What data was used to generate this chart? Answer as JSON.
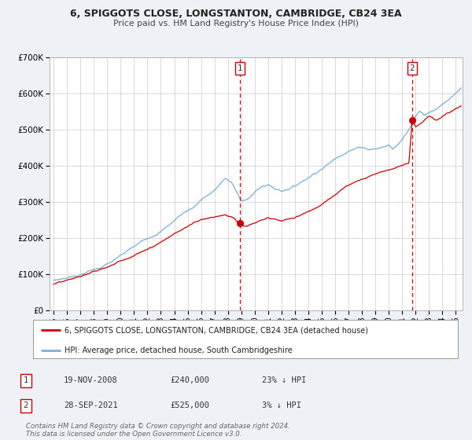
{
  "title": "6, SPIGGOTS CLOSE, LONGSTANTON, CAMBRIDGE, CB24 3EA",
  "subtitle": "Price paid vs. HM Land Registry's House Price Index (HPI)",
  "background_color": "#eef2f7",
  "plot_bg_color": "#ffffff",
  "ylim": [
    0,
    700000
  ],
  "xlim_start": 1994.7,
  "xlim_end": 2025.5,
  "yticks": [
    0,
    100000,
    200000,
    300000,
    400000,
    500000,
    600000,
    700000
  ],
  "ytick_labels": [
    "£0",
    "£100K",
    "£200K",
    "£300K",
    "£400K",
    "£500K",
    "£600K",
    "£700K"
  ],
  "xticks": [
    1995,
    1996,
    1997,
    1998,
    1999,
    2000,
    2001,
    2002,
    2003,
    2004,
    2005,
    2006,
    2007,
    2008,
    2009,
    2010,
    2011,
    2012,
    2013,
    2014,
    2015,
    2016,
    2017,
    2018,
    2019,
    2020,
    2021,
    2022,
    2023,
    2024,
    2025
  ],
  "sale1_date": 2008.89,
  "sale1_price": 240000,
  "sale1_label": "19-NOV-2008",
  "sale1_price_label": "£240,000",
  "sale1_pct": "23% ↓ HPI",
  "sale2_date": 2021.74,
  "sale2_price": 525000,
  "sale2_label": "28-SEP-2021",
  "sale2_price_label": "£525,000",
  "sale2_pct": "3% ↓ HPI",
  "red_line_color": "#cc0000",
  "blue_line_color": "#7aadda",
  "vline_color": "#cc0000",
  "marker_color": "#cc0000",
  "legend1_label": "6, SPIGGOTS CLOSE, LONGSTANTON, CAMBRIDGE, CB24 3EA (detached house)",
  "legend2_label": "HPI: Average price, detached house, South Cambridgeshire",
  "footer": "Contains HM Land Registry data © Crown copyright and database right 2024.\nThis data is licensed under the Open Government Licence v3.0.",
  "hpi_x": [
    1995.0,
    1996.0,
    1997.0,
    1997.5,
    1998.5,
    1999.5,
    2000.5,
    2001.5,
    2002.5,
    2003.5,
    2004.5,
    2005.5,
    2006.0,
    2007.0,
    2007.8,
    2008.3,
    2009.0,
    2009.5,
    2010.0,
    2010.5,
    2011.0,
    2011.5,
    2012.0,
    2012.5,
    2013.0,
    2013.5,
    2014.0,
    2014.5,
    2015.0,
    2015.5,
    2016.0,
    2016.5,
    2017.0,
    2017.5,
    2018.0,
    2018.5,
    2019.0,
    2019.5,
    2020.0,
    2020.3,
    2020.8,
    2021.0,
    2021.5,
    2022.0,
    2022.3,
    2022.7,
    2023.0,
    2023.5,
    2024.0,
    2024.5,
    2025.0,
    2025.4
  ],
  "hpi_y": [
    83000,
    90000,
    100000,
    108000,
    120000,
    138000,
    160000,
    182000,
    205000,
    230000,
    262000,
    285000,
    305000,
    328000,
    362000,
    348000,
    295000,
    305000,
    322000,
    335000,
    342000,
    330000,
    325000,
    332000,
    340000,
    352000,
    365000,
    378000,
    392000,
    405000,
    418000,
    432000,
    445000,
    450000,
    455000,
    450000,
    452000,
    455000,
    462000,
    450000,
    468000,
    480000,
    510000,
    545000,
    560000,
    550000,
    558000,
    568000,
    578000,
    590000,
    602000,
    615000
  ],
  "red_x": [
    1995.0,
    1996.0,
    1997.0,
    1998.0,
    1999.0,
    2000.0,
    2001.0,
    2002.0,
    2003.0,
    2004.0,
    2005.0,
    2006.0,
    2007.0,
    2007.8,
    2008.5,
    2008.89,
    2009.3,
    2009.8,
    2010.5,
    2011.0,
    2011.5,
    2012.0,
    2012.5,
    2013.0,
    2013.5,
    2014.0,
    2015.0,
    2016.0,
    2017.0,
    2018.0,
    2019.0,
    2020.0,
    2021.0,
    2021.5,
    2021.74,
    2022.0,
    2022.5,
    2023.0,
    2023.5,
    2024.0,
    2024.5,
    2025.0,
    2025.4
  ],
  "red_y": [
    72000,
    78000,
    88000,
    100000,
    112000,
    130000,
    148000,
    168000,
    188000,
    212000,
    232000,
    252000,
    262000,
    270000,
    258000,
    240000,
    235000,
    240000,
    248000,
    252000,
    246000,
    242000,
    246000,
    250000,
    258000,
    268000,
    288000,
    312000,
    338000,
    358000,
    372000,
    382000,
    400000,
    408000,
    525000,
    510000,
    522000,
    540000,
    530000,
    538000,
    548000,
    558000,
    565000
  ]
}
